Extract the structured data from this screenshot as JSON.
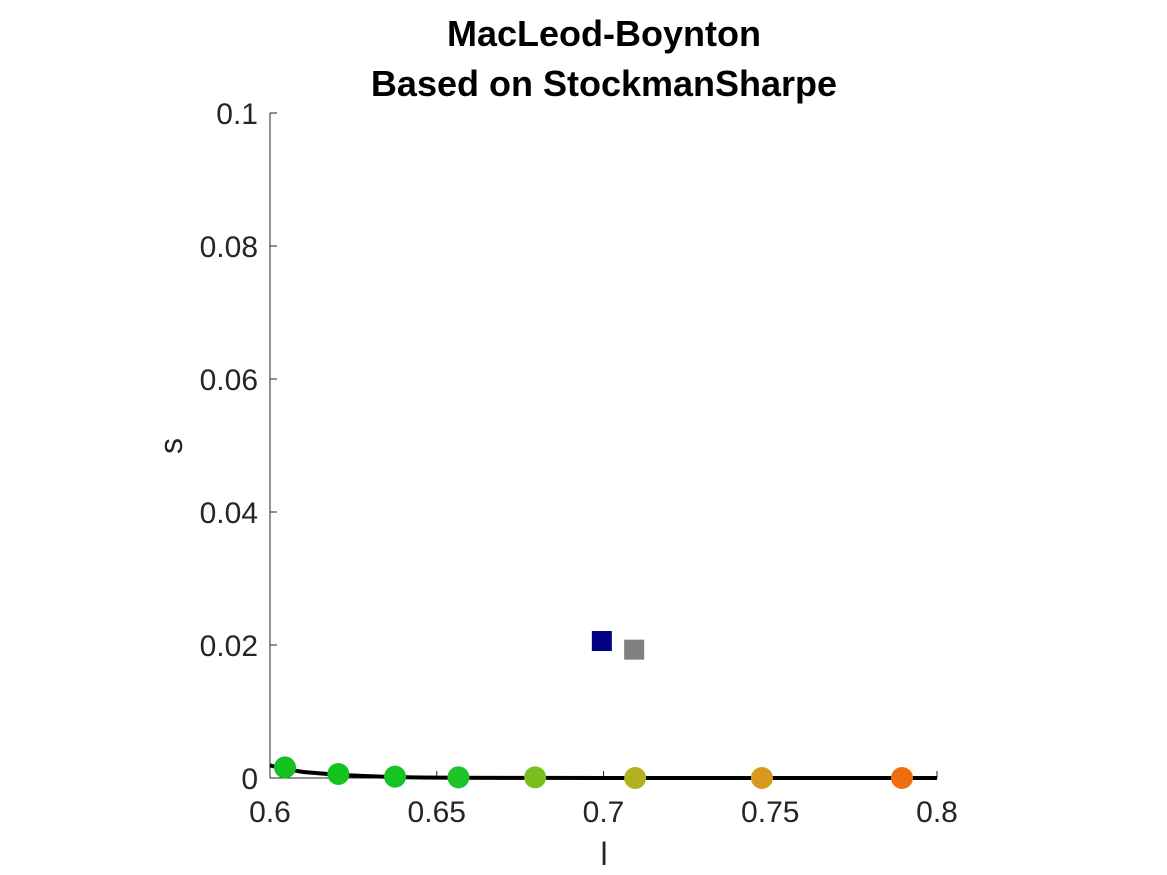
{
  "chart_data": {
    "type": "scatter",
    "title": [
      "MacLeod-Boynton",
      "Based on StockmanSharpe"
    ],
    "xlabel": "l",
    "ylabel": "s",
    "xlim": [
      0.6,
      0.8
    ],
    "ylim": [
      0,
      0.1
    ],
    "xticks": [
      "0.6",
      "0.65",
      "0.7",
      "0.75",
      "0.8"
    ],
    "yticks": [
      "0",
      "0.02",
      "0.04",
      "0.06",
      "0.08",
      "0.1"
    ],
    "grid": false,
    "locus": {
      "color": "#000000",
      "points": [
        [
          0.6,
          0.0019
        ],
        [
          0.604,
          0.0014
        ],
        [
          0.61,
          0.0009
        ],
        [
          0.62,
          0.0005
        ],
        [
          0.63,
          0.00025
        ],
        [
          0.637,
          0.00015
        ],
        [
          0.645,
          8e-05
        ],
        [
          0.656,
          4e-05
        ],
        [
          0.67,
          2e-05
        ],
        [
          0.68,
          1e-05
        ],
        [
          0.7,
          5e-06
        ],
        [
          0.73,
          2e-06
        ],
        [
          0.76,
          1e-06
        ],
        [
          0.8,
          0.0
        ]
      ]
    },
    "circles": [
      {
        "x": 0.6045,
        "y": 0.0016,
        "color": "#12c21f"
      },
      {
        "x": 0.6205,
        "y": 0.0006,
        "color": "#14c41c"
      },
      {
        "x": 0.6375,
        "y": 0.0002,
        "color": "#16c424"
      },
      {
        "x": 0.6565,
        "y": 0.0001,
        "color": "#1ec42a"
      },
      {
        "x": 0.6795,
        "y": 0.0001,
        "color": "#78be1c"
      },
      {
        "x": 0.7095,
        "y": 0.0,
        "color": "#b2b01e"
      },
      {
        "x": 0.7475,
        "y": 0.0,
        "color": "#d89a1c"
      },
      {
        "x": 0.7895,
        "y": 0.0,
        "color": "#ee6e12"
      }
    ],
    "squares": [
      {
        "x": 0.6995,
        "y": 0.0206,
        "color": "#000080"
      },
      {
        "x": 0.7092,
        "y": 0.0193,
        "color": "#808080"
      }
    ]
  }
}
